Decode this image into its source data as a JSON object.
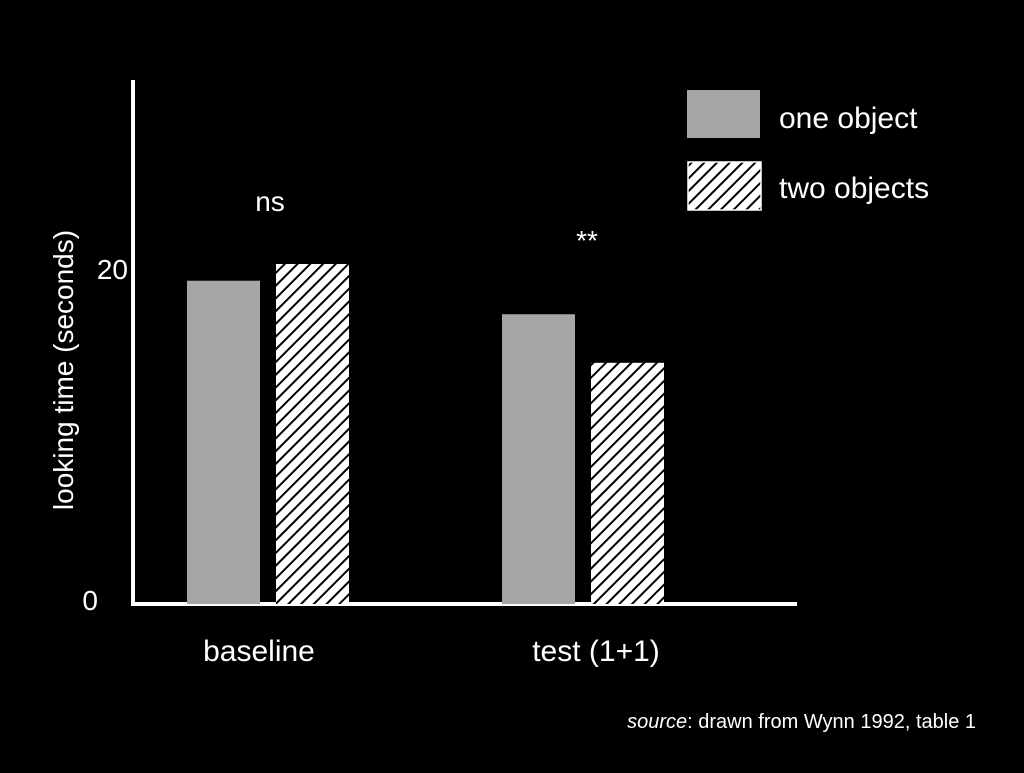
{
  "chart_data": {
    "type": "bar",
    "categories": [
      "baseline",
      "test (1+1)"
    ],
    "series": [
      {
        "name": "one object",
        "values": [
          19.3,
          17.3
        ],
        "fill": "#a6a6a6",
        "pattern": "solid"
      },
      {
        "name": "two objects",
        "values": [
          20.3,
          14.4
        ],
        "fill": "#ffffff",
        "pattern": "diagonal-hatch"
      }
    ],
    "ylabel": "looking time (seconds)",
    "xlabel": "",
    "yticks": [
      "0",
      "20"
    ],
    "ylim": [
      0,
      32
    ],
    "significance": [
      "ns",
      "**"
    ],
    "legend_position": "top-right",
    "grid": false
  },
  "source": {
    "prefix": "source",
    "text": ": drawn from Wynn 1992, table 1"
  },
  "colors": {
    "background": "#000000",
    "axis": "#ffffff",
    "text": "#ffffff",
    "one_object": "#a6a6a6",
    "hatch_dark": "#000000",
    "hatch_light": "#ffffff"
  }
}
